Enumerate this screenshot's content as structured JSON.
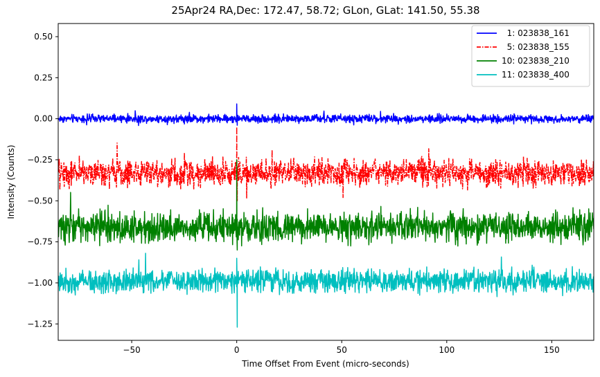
{
  "chart_data": {
    "type": "line",
    "title": "25Apr24 RA,Dec:  172.47,  58.72; GLon, GLat:  141.50,  55.38",
    "xlabel": "Time Offset From Event (micro-seconds)",
    "ylabel": "Intensity (Counts)",
    "xlim": [
      -85,
      170
    ],
    "ylim": [
      -1.35,
      0.58
    ],
    "xticks": [
      -50,
      0,
      50,
      100,
      150
    ],
    "xtick_labels": [
      "−50",
      "0",
      "50",
      "100",
      "150"
    ],
    "yticks": [
      0.5,
      0.25,
      0.0,
      -0.25,
      -0.5,
      -0.75,
      -1.0,
      -1.25
    ],
    "ytick_labels": [
      "0.50",
      "0.25",
      "0.00",
      "−0.25",
      "−0.50",
      "−0.75",
      "−1.00",
      "−1.25"
    ],
    "grid": false,
    "legend_position": "top-right",
    "series": [
      {
        "name": "1: 023838_161",
        "legend_label": "  1: 023838_161",
        "color": "#0000ff",
        "style": "solid",
        "baseline": 0.0,
        "noise": 0.012,
        "event_peak": 0.09,
        "event_dip": -0.04
      },
      {
        "name": "5: 023838_155",
        "legend_label": "  5: 023838_155",
        "color": "#ff0000",
        "style": "dashdot",
        "baseline": -0.33,
        "noise": 0.04,
        "event_peak": -0.05,
        "event_dip": -0.5
      },
      {
        "name": "10: 023838_210",
        "legend_label": "10: 023838_210",
        "color": "#008000",
        "style": "solid",
        "baseline": -0.66,
        "noise": 0.045,
        "event_peak": -0.25,
        "event_dip": -0.8
      },
      {
        "name": "11: 023838_400",
        "legend_label": "11: 023838_400",
        "color": "#00bfbf",
        "style": "solid",
        "baseline": -0.99,
        "noise": 0.035,
        "event_peak": -0.85,
        "event_dip": -1.27
      }
    ]
  }
}
